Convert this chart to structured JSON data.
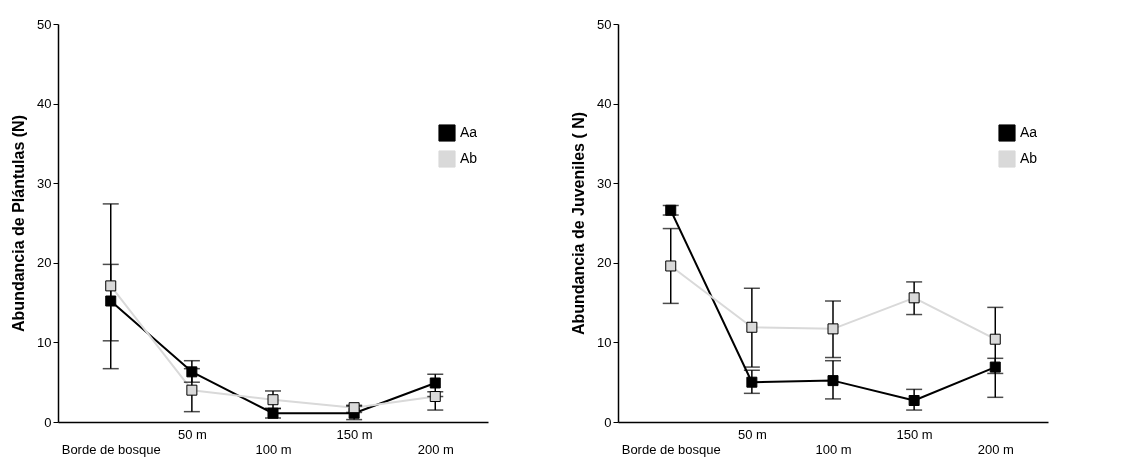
{
  "chart_data": [
    {
      "type": "line",
      "ylabel": "Abundancia de Plántulas (N)",
      "categories": [
        "Borde de bosque",
        "50 m",
        "100 m",
        "150 m",
        "200 m"
      ],
      "ylim": [
        0,
        50
      ],
      "yticks": [
        0,
        10,
        20,
        30,
        40,
        50
      ],
      "grid": false,
      "legend": "top right",
      "marker": "square",
      "series": [
        {
          "name": "Aa",
          "color": "#000000",
          "values": [
            15.2,
            6.3,
            1.1,
            1.1,
            4.9
          ],
          "errors": [
            [
              10.2,
              19.8
            ],
            [
              5.0,
              7.7
            ],
            [
              0.5,
              1.7
            ],
            [
              0.3,
              2.0
            ],
            [
              3.8,
              6.0
            ]
          ]
        },
        {
          "name": "Ab",
          "color": "#d9d9d9",
          "values": [
            17.1,
            4.0,
            2.8,
            1.8,
            3.2
          ],
          "errors": [
            [
              6.7,
              27.4
            ],
            [
              1.3,
              6.7
            ],
            [
              1.7,
              3.9
            ],
            [
              1.2,
              2.1
            ],
            [
              1.5,
              3.2
            ]
          ]
        }
      ]
    },
    {
      "type": "line",
      "ylabel": "Abundancia de Juveniles ( N)",
      "categories": [
        "Borde de bosque",
        "50 m",
        "100 m",
        "150 m",
        "200 m"
      ],
      "ylim": [
        0,
        50
      ],
      "yticks": [
        0,
        10,
        20,
        30,
        40,
        50
      ],
      "grid": false,
      "legend": "top right",
      "marker": "square",
      "series": [
        {
          "name": "Aa",
          "color": "#000000",
          "values": [
            26.6,
            5.0,
            5.2,
            2.7,
            6.9
          ],
          "errors": [
            [
              26.0,
              27.2
            ],
            [
              3.6,
              6.5
            ],
            [
              2.9,
              7.7
            ],
            [
              1.5,
              4.1
            ],
            [
              3.1,
              8.0
            ]
          ]
        },
        {
          "name": "Ab",
          "color": "#d9d9d9",
          "values": [
            19.6,
            11.9,
            11.7,
            15.6,
            10.4
          ],
          "errors": [
            [
              14.9,
              24.3
            ],
            [
              6.9,
              16.8
            ],
            [
              8.1,
              15.2
            ],
            [
              13.5,
              17.6
            ],
            [
              6.1,
              14.4
            ]
          ]
        }
      ]
    }
  ]
}
